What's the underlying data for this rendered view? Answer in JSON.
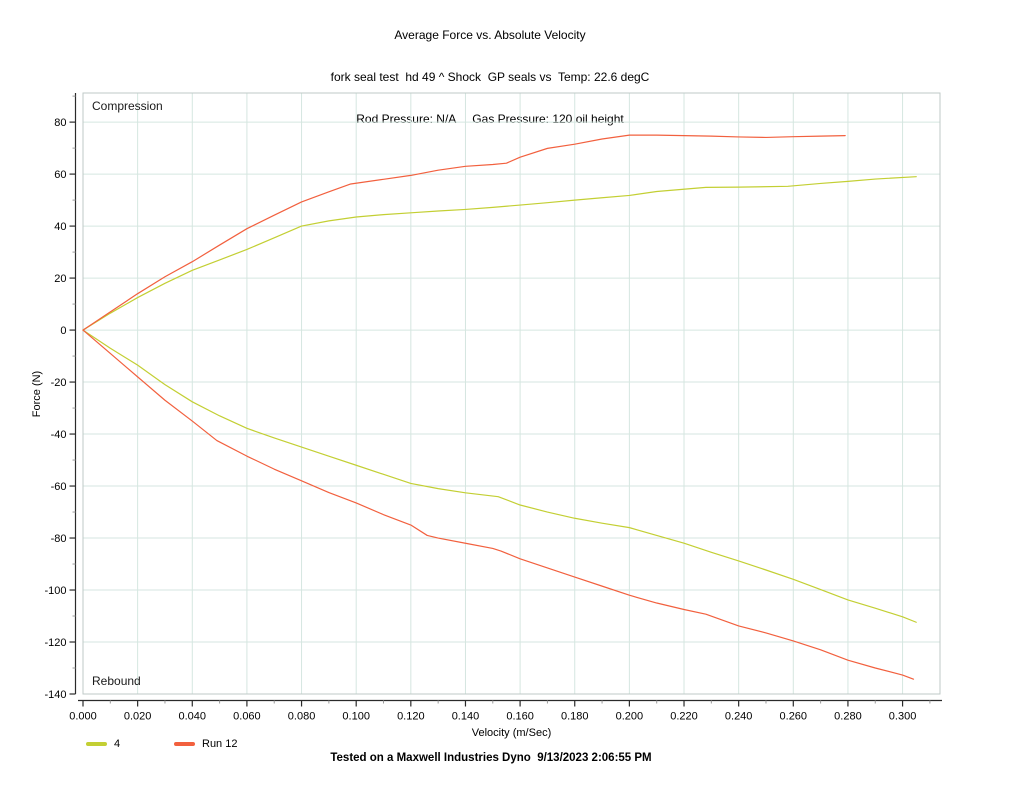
{
  "page": {
    "footer": "Tested on a Maxwell Industries Dyno  9/13/2023 2:06:55 PM"
  },
  "chart_data": {
    "type": "line",
    "title": "Average Force vs. Absolute Velocity",
    "subtitle_line1": "fork seal test  hd 49 ^ Shock  GP seals vs  Temp: 22.6 degC",
    "subtitle_line2": "Rod Pressure: N/A     Gas Pressure: 120 oil height",
    "xlabel": "Velocity (m/Sec)",
    "ylabel": "Force (N)",
    "annotation_top": "Compression",
    "annotation_bottom": "Rebound",
    "legend_position": "bottom-left",
    "grid": true,
    "grid_color": "#d5e6e0",
    "plot_border_color": "#bfc9c7",
    "axis_color": "#2a2a2a",
    "minor_tick_color": "#9a9a9a",
    "xlim": [
      0,
      0.3137
    ],
    "ylim": [
      -140,
      91.2
    ],
    "x_ticks": [
      0.0,
      0.02,
      0.04,
      0.06,
      0.08,
      0.1,
      0.12,
      0.14,
      0.16,
      0.18,
      0.2,
      0.22,
      0.24,
      0.26,
      0.28,
      0.3
    ],
    "x_tick_labels": [
      "0.000",
      "0.020",
      "0.040",
      "0.060",
      "0.080",
      "0.100",
      "0.120",
      "0.140",
      "0.160",
      "0.180",
      "0.200",
      "0.220",
      "0.240",
      "0.260",
      "0.280",
      "0.300"
    ],
    "x_minor_ticks": [
      0.01,
      0.03,
      0.05,
      0.07,
      0.09,
      0.11,
      0.13,
      0.15,
      0.17,
      0.19,
      0.21,
      0.23,
      0.25,
      0.27,
      0.29,
      0.31
    ],
    "y_ticks": [
      80,
      60,
      40,
      20,
      0,
      -20,
      -40,
      -60,
      -80,
      -100,
      -120,
      -140
    ],
    "y_tick_labels": [
      "80",
      "60",
      "40",
      "20",
      "0",
      "-20",
      "-40",
      "-60",
      "-80",
      "-100",
      "-120",
      "-140"
    ],
    "y_minor_ticks": [
      90,
      70,
      50,
      30,
      10,
      -10,
      -30,
      -50,
      -70,
      -90,
      -110,
      -130
    ],
    "series": [
      {
        "name": "4",
        "color": "#c3cf33",
        "compression": [
          [
            0,
            0
          ],
          [
            0.01,
            6.5
          ],
          [
            0.02,
            12.5
          ],
          [
            0.03,
            18
          ],
          [
            0.04,
            23
          ],
          [
            0.05,
            27
          ],
          [
            0.06,
            31
          ],
          [
            0.07,
            35.5
          ],
          [
            0.08,
            40
          ],
          [
            0.09,
            42
          ],
          [
            0.1,
            43.5
          ],
          [
            0.11,
            44.4
          ],
          [
            0.12,
            45.1
          ],
          [
            0.13,
            45.8
          ],
          [
            0.14,
            46.4
          ],
          [
            0.15,
            47.2
          ],
          [
            0.16,
            48.1
          ],
          [
            0.17,
            49
          ],
          [
            0.18,
            50
          ],
          [
            0.19,
            50.9
          ],
          [
            0.2,
            51.8
          ],
          [
            0.21,
            53.3
          ],
          [
            0.228,
            54.9
          ],
          [
            0.24,
            55
          ],
          [
            0.258,
            55.3
          ],
          [
            0.27,
            56.4
          ],
          [
            0.28,
            57.2
          ],
          [
            0.29,
            58.1
          ],
          [
            0.305,
            59
          ]
        ],
        "rebound": [
          [
            0,
            0
          ],
          [
            0.01,
            -7
          ],
          [
            0.02,
            -13.5
          ],
          [
            0.03,
            -21
          ],
          [
            0.04,
            -27.6
          ],
          [
            0.05,
            -33
          ],
          [
            0.06,
            -37.8
          ],
          [
            0.07,
            -41.5
          ],
          [
            0.08,
            -45
          ],
          [
            0.09,
            -48.5
          ],
          [
            0.1,
            -52
          ],
          [
            0.11,
            -55.5
          ],
          [
            0.12,
            -59
          ],
          [
            0.13,
            -61
          ],
          [
            0.14,
            -62.6
          ],
          [
            0.152,
            -64.1
          ],
          [
            0.16,
            -67.3
          ],
          [
            0.17,
            -70
          ],
          [
            0.18,
            -72.4
          ],
          [
            0.19,
            -74.3
          ],
          [
            0.2,
            -76
          ],
          [
            0.21,
            -79
          ],
          [
            0.22,
            -82
          ],
          [
            0.23,
            -85.5
          ],
          [
            0.24,
            -88.8
          ],
          [
            0.25,
            -92.3
          ],
          [
            0.26,
            -95.9
          ],
          [
            0.27,
            -99.8
          ],
          [
            0.28,
            -103.8
          ],
          [
            0.29,
            -107
          ],
          [
            0.3,
            -110.3
          ],
          [
            0.305,
            -112.4
          ]
        ]
      },
      {
        "name": "Run 12",
        "color": "#f2603e",
        "compression": [
          [
            0,
            0
          ],
          [
            0.01,
            7
          ],
          [
            0.02,
            14
          ],
          [
            0.03,
            20.5
          ],
          [
            0.04,
            26.3
          ],
          [
            0.05,
            32.7
          ],
          [
            0.06,
            39
          ],
          [
            0.07,
            44.2
          ],
          [
            0.08,
            49.3
          ],
          [
            0.09,
            53.2
          ],
          [
            0.098,
            56.2
          ],
          [
            0.11,
            58
          ],
          [
            0.12,
            59.5
          ],
          [
            0.13,
            61.5
          ],
          [
            0.14,
            63
          ],
          [
            0.15,
            63.7
          ],
          [
            0.155,
            64.2
          ],
          [
            0.16,
            66.5
          ],
          [
            0.17,
            69.9
          ],
          [
            0.18,
            71.5
          ],
          [
            0.19,
            73.5
          ],
          [
            0.2,
            75
          ],
          [
            0.21,
            75
          ],
          [
            0.22,
            74.8
          ],
          [
            0.23,
            74.6
          ],
          [
            0.24,
            74.3
          ],
          [
            0.25,
            74.1
          ],
          [
            0.26,
            74.4
          ],
          [
            0.27,
            74.6
          ],
          [
            0.279,
            74.8
          ]
        ],
        "rebound": [
          [
            0,
            0
          ],
          [
            0.01,
            -9
          ],
          [
            0.02,
            -18
          ],
          [
            0.03,
            -27
          ],
          [
            0.04,
            -35
          ],
          [
            0.049,
            -42.5
          ],
          [
            0.06,
            -48.5
          ],
          [
            0.07,
            -53.5
          ],
          [
            0.08,
            -58
          ],
          [
            0.09,
            -62.5
          ],
          [
            0.1,
            -66.5
          ],
          [
            0.11,
            -71
          ],
          [
            0.12,
            -75
          ],
          [
            0.126,
            -79
          ],
          [
            0.13,
            -80
          ],
          [
            0.14,
            -82
          ],
          [
            0.15,
            -84
          ],
          [
            0.153,
            -85
          ],
          [
            0.16,
            -88
          ],
          [
            0.17,
            -91.5
          ],
          [
            0.18,
            -95
          ],
          [
            0.19,
            -98.5
          ],
          [
            0.2,
            -102
          ],
          [
            0.21,
            -105
          ],
          [
            0.22,
            -107.5
          ],
          [
            0.228,
            -109.3
          ],
          [
            0.24,
            -113.8
          ],
          [
            0.25,
            -116.5
          ],
          [
            0.26,
            -119.6
          ],
          [
            0.27,
            -123
          ],
          [
            0.28,
            -127
          ],
          [
            0.29,
            -130
          ],
          [
            0.3,
            -132.7
          ],
          [
            0.304,
            -134.3
          ]
        ]
      }
    ]
  }
}
